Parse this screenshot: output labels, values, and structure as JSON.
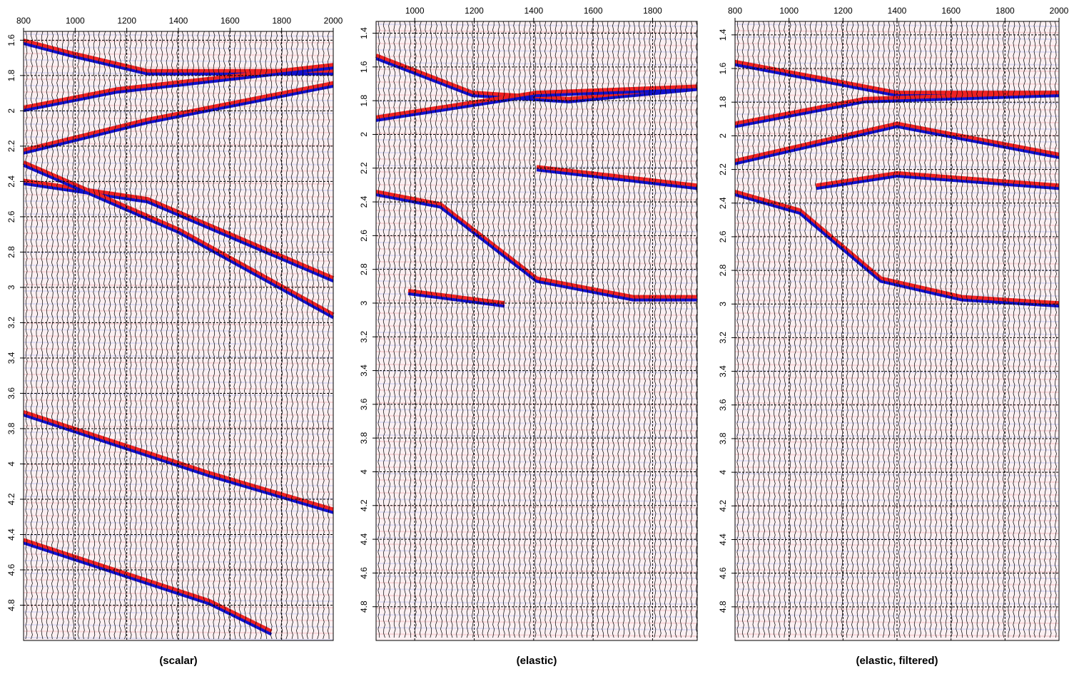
{
  "chart_data": [
    {
      "type": "wiggle",
      "caption": "(scalar)",
      "xlim": [
        800,
        2000
      ],
      "xticks": [
        800,
        1000,
        1200,
        1400,
        1600,
        1800,
        2000
      ],
      "ylim": [
        1.55,
        5.0
      ],
      "yticks": [
        1.6,
        1.8,
        2,
        2.2,
        2.4,
        2.6,
        2.8,
        3,
        3.2,
        3.4,
        3.6,
        3.8,
        4,
        4.2,
        4.4,
        4.6,
        4.8
      ],
      "grid": true
    },
    {
      "type": "wiggle",
      "caption": "(elastic)",
      "xlim": [
        870,
        1950
      ],
      "xticks": [
        1000,
        1200,
        1400,
        1600,
        1800
      ],
      "ylim": [
        1.33,
        5.0
      ],
      "yticks": [
        1.4,
        1.6,
        1.8,
        2,
        2.2,
        2.4,
        2.6,
        2.8,
        3,
        3.2,
        3.4,
        3.6,
        3.8,
        4,
        4.2,
        4.4,
        4.6,
        4.8
      ],
      "grid": true
    },
    {
      "type": "wiggle",
      "caption": "(elastic, filtered)",
      "xlim": [
        800,
        2000
      ],
      "xticks": [
        800,
        1000,
        1200,
        1400,
        1600,
        1800,
        2000
      ],
      "ylim": [
        1.32,
        5.0
      ],
      "yticks": [
        1.4,
        1.6,
        1.8,
        2,
        2.2,
        2.4,
        2.6,
        2.8,
        3,
        3.2,
        3.4,
        3.6,
        3.8,
        4,
        4.2,
        4.4,
        4.6,
        4.8
      ],
      "grid": true
    }
  ]
}
